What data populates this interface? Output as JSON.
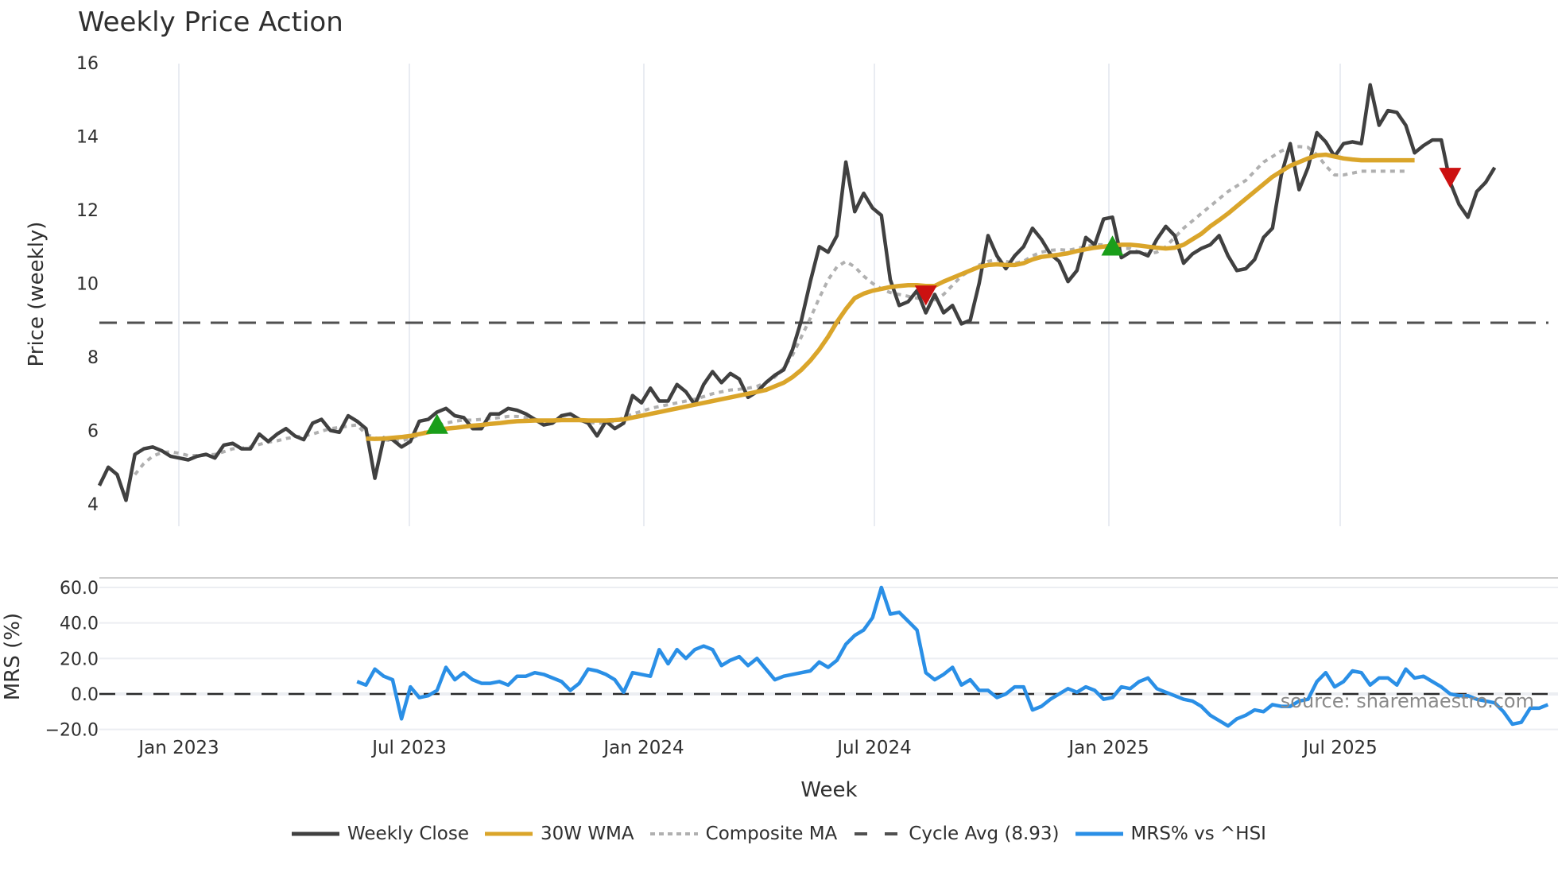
{
  "title": "Weekly Price Action",
  "source_text": "source: sharemaestro.com",
  "legend": [
    {
      "label": "Weekly Close",
      "color": "#404040",
      "style": "solid"
    },
    {
      "label": "30W WMA",
      "color": "#DAA52A",
      "style": "solid"
    },
    {
      "label": "Composite MA",
      "color": "#b0b0b0",
      "style": "dotted"
    },
    {
      "label": "Cycle Avg (8.93)",
      "color": "#505050",
      "style": "dashed"
    },
    {
      "label": "MRS% vs ^HSI",
      "color": "#2A8FE6",
      "style": "solid"
    }
  ],
  "axes": {
    "price_ylabel": "Price (weekly)",
    "mrs_ylabel": "MRS (%)",
    "xlabel": "Week",
    "price_yticks": [
      "4",
      "6",
      "8",
      "10",
      "12",
      "14",
      "16"
    ],
    "mrs_yticks": [
      "−20.0",
      "0.0",
      "20.0",
      "40.0",
      "60.0"
    ],
    "xticks": [
      "Jan 2023",
      "Jul 2023",
      "Jan 2024",
      "Jul 2024",
      "Jan 2025",
      "Jul 2025"
    ]
  },
  "chart_data": [
    {
      "type": "line",
      "title": "Weekly Price Action",
      "xlabel": "Week",
      "ylabel": "Price (weekly)",
      "ylim": [
        3.6,
        16.2
      ],
      "grid": "vertical only",
      "legend_position": "bottom",
      "x_start": "2022-11-07",
      "x_step": "1 week",
      "xticks": [
        "Jan 2023",
        "Jul 2023",
        "Jan 2024",
        "Jul 2024",
        "Jan 2025",
        "Jul 2025"
      ],
      "reference_lines": [
        {
          "name": "Cycle Avg (8.93)",
          "y": 8.93,
          "style": "dashed"
        }
      ],
      "series": [
        {
          "name": "Weekly Close",
          "color": "#404040",
          "values": [
            4.5,
            5.0,
            4.8,
            4.1,
            5.35,
            5.5,
            5.55,
            5.45,
            5.3,
            5.25,
            5.2,
            5.3,
            5.35,
            5.25,
            5.6,
            5.65,
            5.5,
            5.5,
            5.9,
            5.7,
            5.9,
            6.05,
            5.85,
            5.75,
            6.2,
            6.3,
            6.0,
            5.95,
            6.4,
            6.25,
            6.05,
            4.7,
            5.8,
            5.75,
            5.55,
            5.7,
            6.25,
            6.3,
            6.5,
            6.6,
            6.4,
            6.35,
            6.05,
            6.05,
            6.45,
            6.45,
            6.6,
            6.55,
            6.45,
            6.3,
            6.15,
            6.2,
            6.4,
            6.45,
            6.3,
            6.2,
            5.85,
            6.25,
            6.05,
            6.2,
            6.95,
            6.75,
            7.15,
            6.8,
            6.8,
            7.25,
            7.05,
            6.7,
            7.25,
            7.6,
            7.3,
            7.55,
            7.4,
            6.9,
            7.05,
            7.3,
            7.5,
            7.65,
            8.2,
            9.0,
            10.05,
            11.0,
            10.85,
            11.3,
            13.3,
            11.95,
            12.45,
            12.05,
            11.85,
            10.1,
            9.4,
            9.5,
            9.8,
            9.2,
            9.7,
            9.2,
            9.4,
            8.9,
            9.0,
            10.0,
            11.3,
            10.75,
            10.4,
            10.75,
            11.0,
            11.5,
            11.2,
            10.8,
            10.6,
            10.05,
            10.35,
            11.25,
            11.05,
            11.75,
            11.8,
            10.7,
            10.85,
            10.85,
            10.75,
            11.2,
            11.55,
            11.3,
            10.55,
            10.8,
            10.95,
            11.05,
            11.3,
            10.75,
            10.35,
            10.4,
            10.65,
            11.25,
            11.5,
            12.95,
            13.8,
            12.55,
            13.15,
            14.1,
            13.85,
            13.45,
            13.8,
            13.85,
            13.8,
            15.4,
            14.3,
            14.7,
            14.65,
            14.3,
            13.55,
            13.75,
            13.9,
            13.9,
            12.75,
            12.15,
            11.8,
            12.5,
            12.75,
            13.15
          ]
        },
        {
          "name": "30W WMA",
          "color": "#DAA52A",
          "values": [
            null,
            null,
            null,
            null,
            null,
            null,
            null,
            null,
            null,
            null,
            null,
            null,
            null,
            null,
            null,
            null,
            null,
            null,
            null,
            null,
            null,
            null,
            null,
            null,
            null,
            null,
            null,
            null,
            null,
            null,
            5.78,
            5.77,
            5.78,
            5.8,
            5.82,
            5.85,
            5.9,
            5.95,
            6.0,
            6.05,
            6.07,
            6.1,
            6.13,
            6.15,
            6.18,
            6.2,
            6.23,
            6.25,
            6.26,
            6.27,
            6.27,
            6.27,
            6.28,
            6.28,
            6.28,
            6.27,
            6.27,
            6.27,
            6.28,
            6.3,
            6.35,
            6.4,
            6.45,
            6.5,
            6.55,
            6.6,
            6.65,
            6.7,
            6.75,
            6.8,
            6.85,
            6.9,
            6.95,
            7.0,
            7.05,
            7.1,
            7.2,
            7.3,
            7.45,
            7.65,
            7.9,
            8.2,
            8.55,
            8.95,
            9.3,
            9.6,
            9.72,
            9.8,
            9.85,
            9.9,
            9.93,
            9.95,
            9.95,
            9.93,
            9.93,
            10.05,
            10.15,
            10.25,
            10.35,
            10.45,
            10.5,
            10.52,
            10.5,
            10.5,
            10.55,
            10.65,
            10.72,
            10.75,
            10.78,
            10.82,
            10.88,
            10.93,
            10.97,
            11.0,
            11.02,
            11.05,
            11.05,
            11.03,
            11.0,
            10.97,
            10.95,
            10.97,
            11.05,
            11.2,
            11.35,
            11.55,
            11.72,
            11.9,
            12.1,
            12.3,
            12.5,
            12.7,
            12.9,
            13.05,
            13.2,
            13.3,
            13.4,
            13.48,
            13.5,
            13.45,
            13.4,
            13.37,
            13.35,
            13.35,
            13.35,
            13.35,
            13.35,
            13.35,
            13.35
          ]
        },
        {
          "name": "Composite MA",
          "color": "#b0b0b0",
          "values": [
            null,
            null,
            null,
            null,
            4.8,
            5.1,
            5.3,
            5.4,
            5.42,
            5.38,
            5.32,
            5.32,
            5.33,
            5.35,
            5.42,
            5.5,
            5.52,
            5.55,
            5.62,
            5.68,
            5.72,
            5.78,
            5.82,
            5.85,
            5.9,
            5.98,
            6.05,
            6.08,
            6.12,
            6.15,
            5.9,
            5.8,
            5.75,
            5.72,
            5.72,
            5.78,
            5.88,
            6.0,
            6.12,
            6.2,
            6.25,
            6.28,
            6.28,
            6.3,
            6.32,
            6.35,
            6.38,
            6.38,
            6.35,
            6.3,
            6.27,
            6.27,
            6.3,
            6.3,
            6.27,
            6.22,
            6.2,
            6.2,
            6.25,
            6.35,
            6.45,
            6.52,
            6.6,
            6.65,
            6.7,
            6.75,
            6.8,
            6.85,
            6.92,
            7.0,
            7.05,
            7.1,
            7.12,
            7.15,
            7.2,
            7.3,
            7.45,
            7.7,
            8.05,
            8.55,
            9.05,
            9.6,
            10.1,
            10.45,
            10.6,
            10.45,
            10.2,
            10.0,
            9.85,
            9.75,
            9.7,
            9.65,
            9.6,
            9.55,
            9.55,
            9.7,
            9.95,
            10.2,
            10.35,
            10.5,
            10.6,
            10.65,
            10.6,
            10.55,
            10.6,
            10.75,
            10.85,
            10.9,
            10.92,
            10.9,
            10.95,
            11.0,
            11.05,
            11.05,
            11.0,
            10.95,
            10.95,
            10.85,
            10.8,
            10.85,
            11.0,
            11.25,
            11.5,
            11.7,
            11.9,
            12.1,
            12.3,
            12.5,
            12.65,
            12.8,
            13.05,
            13.3,
            13.45,
            13.6,
            13.7,
            13.72,
            13.7,
            13.5,
            13.2,
            12.95,
            12.95,
            13.0,
            13.05,
            13.05,
            13.05,
            13.05,
            13.05,
            13.05
          ]
        }
      ],
      "markers": [
        {
          "type": "buy",
          "shape": "triangle-up",
          "color": "#1A9E1A",
          "week_index": 38,
          "y": 6.15
        },
        {
          "type": "sell",
          "shape": "triangle-down",
          "color": "#CC1111",
          "week_index": 93,
          "y": 9.7
        },
        {
          "type": "buy",
          "shape": "triangle-up",
          "color": "#1A9E1A",
          "week_index": 114,
          "y": 11.0
        },
        {
          "type": "sell",
          "shape": "triangle-down",
          "color": "#CC1111",
          "week_index": 152,
          "y": 12.9
        }
      ]
    },
    {
      "type": "line",
      "title": "",
      "xlabel": "Week",
      "ylabel": "MRS (%)",
      "ylim": [
        -22,
        65
      ],
      "grid": "horizontal",
      "reference_lines": [
        {
          "y": 0,
          "style": "dashed"
        }
      ],
      "series": [
        {
          "name": "MRS% vs ^HSI",
          "color": "#2A8FE6",
          "start_index": 29,
          "values": [
            7,
            5,
            14,
            10,
            8,
            -14,
            4,
            -2,
            -1,
            2,
            15,
            8,
            12,
            8,
            6,
            6,
            7,
            5,
            10,
            10,
            12,
            11,
            9,
            7,
            2,
            6,
            14,
            13,
            11,
            8,
            1,
            12,
            11,
            10,
            25,
            17,
            25,
            20,
            25,
            27,
            25,
            16,
            19,
            21,
            16,
            20,
            14,
            8,
            10,
            11,
            12,
            13,
            18,
            15,
            19,
            28,
            33,
            36,
            43,
            60,
            45,
            46,
            41,
            36,
            12,
            8,
            11,
            15,
            5,
            8,
            2,
            2,
            -2,
            0,
            4,
            4,
            -9,
            -7,
            -3,
            0,
            3,
            1,
            4,
            2,
            -3,
            -2,
            4,
            3,
            7,
            9,
            3,
            1,
            -1,
            -3,
            -4,
            -7,
            -12,
            -15,
            -18,
            -14,
            -12,
            -9,
            -10,
            -6,
            -7,
            -7,
            -4,
            -3,
            7,
            12,
            4,
            7,
            13,
            12,
            5,
            9,
            9,
            5,
            14,
            9,
            10,
            7,
            4,
            0,
            -1,
            -1,
            -3,
            -4,
            -5,
            -10,
            -17,
            -16,
            -8,
            -8,
            -6
          ]
        }
      ]
    }
  ]
}
